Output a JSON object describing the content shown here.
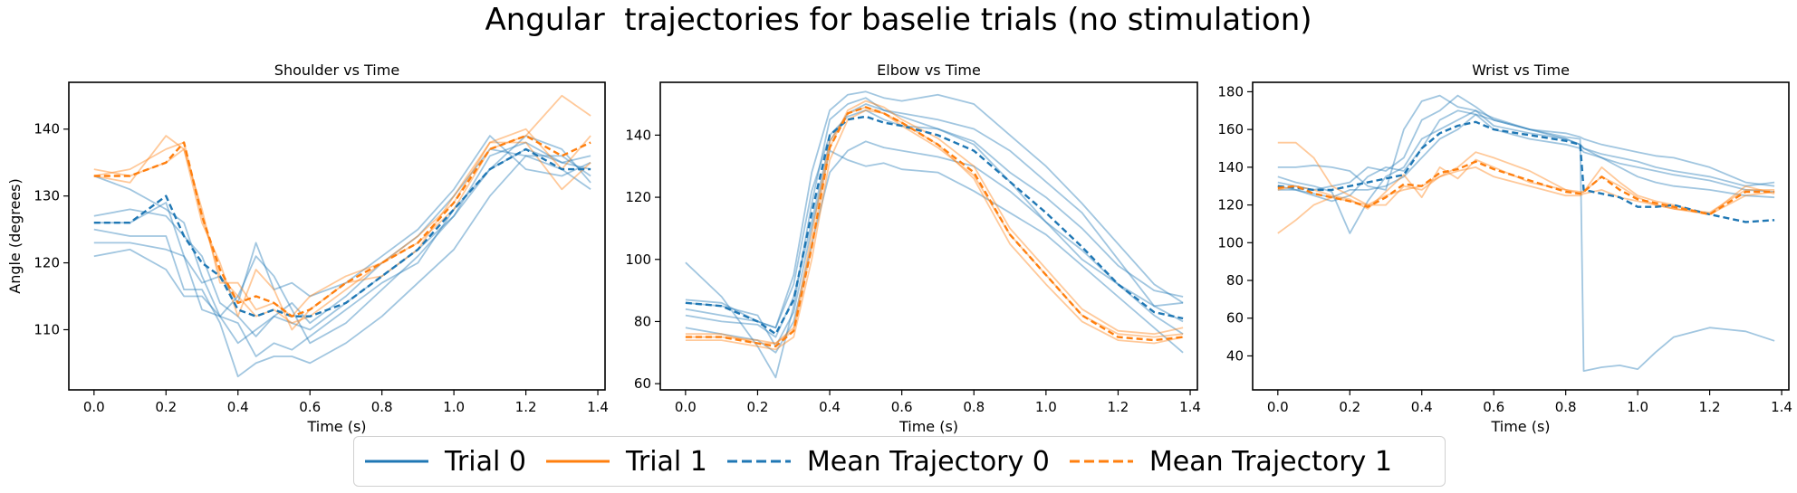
{
  "title": "Angular  trajectories for baselie trials (no stimulation)",
  "colors": {
    "trial0": "#1f77b4",
    "trial1": "#ff7f0e"
  },
  "legend": {
    "placement": "bottom-center",
    "items": [
      {
        "label": "Trial 0",
        "style": "solid",
        "color": "#1f77b4"
      },
      {
        "label": "Trial 1",
        "style": "solid",
        "color": "#ff7f0e"
      },
      {
        "label": "Mean Trajectory 0",
        "style": "dashed",
        "color": "#1f77b4"
      },
      {
        "label": "Mean Trajectory 1",
        "style": "dashed",
        "color": "#ff7f0e"
      }
    ]
  },
  "chart_data": [
    {
      "type": "line",
      "title": "Shoulder vs Time",
      "xlabel": "Time (s)",
      "ylabel": "Angle (degrees)",
      "xlim": [
        -0.07,
        1.42
      ],
      "ylim": [
        101,
        147
      ],
      "xticks": [
        0.0,
        0.2,
        0.4,
        0.6,
        0.8,
        1.0,
        1.2,
        1.4
      ],
      "yticks": [
        110,
        120,
        130,
        140
      ],
      "grid": false,
      "x": [
        0.0,
        0.1,
        0.2,
        0.25,
        0.3,
        0.35,
        0.4,
        0.45,
        0.5,
        0.55,
        0.6,
        0.7,
        0.8,
        0.9,
        1.0,
        1.1,
        1.2,
        1.3,
        1.38
      ],
      "series": [
        {
          "group": "trial0",
          "kind": "trial",
          "values": [
            133,
            131,
            128,
            126,
            118,
            112,
            108,
            110,
            112,
            111,
            110,
            114,
            118,
            122,
            127,
            136,
            138,
            135,
            134
          ]
        },
        {
          "group": "trial0",
          "kind": "trial",
          "values": [
            127,
            128,
            127,
            124,
            121,
            114,
            112,
            109,
            112,
            114,
            111,
            115,
            120,
            124,
            130,
            137,
            136,
            136,
            133
          ]
        },
        {
          "group": "trial0",
          "kind": "trial",
          "values": [
            123,
            123,
            122,
            121,
            117,
            118,
            114,
            123,
            116,
            117,
            115,
            117,
            121,
            125,
            131,
            139,
            134,
            133,
            135
          ]
        },
        {
          "group": "trial0",
          "kind": "trial",
          "values": [
            121,
            122,
            119,
            115,
            115,
            112,
            111,
            106,
            108,
            107,
            109,
            113,
            117,
            120,
            128,
            134,
            137,
            135,
            136
          ]
        },
        {
          "group": "trial0",
          "kind": "trial",
          "values": [
            125,
            124,
            124,
            116,
            116,
            111,
            103,
            105,
            106,
            106,
            105,
            108,
            112,
            117,
            122,
            130,
            136,
            134,
            131
          ]
        },
        {
          "group": "trial0",
          "kind": "trial",
          "values": [
            126,
            126,
            129,
            121,
            113,
            112,
            115,
            121,
            118,
            113,
            108,
            111,
            116,
            121,
            127,
            134,
            139,
            137,
            132
          ]
        },
        {
          "group": "trial1",
          "kind": "trial",
          "values": [
            133,
            134,
            137,
            138,
            127,
            118,
            115,
            112,
            113,
            111,
            112,
            116,
            120,
            123,
            128,
            137,
            139,
            145,
            142
          ]
        },
        {
          "group": "trial1",
          "kind": "trial",
          "values": [
            133,
            132,
            139,
            137,
            126,
            120,
            112,
            119,
            116,
            110,
            113,
            117,
            118,
            122,
            130,
            138,
            138,
            131,
            135
          ]
        },
        {
          "group": "trial1",
          "kind": "trial",
          "values": [
            134,
            133,
            135,
            137,
            128,
            117,
            117,
            113,
            114,
            112,
            115,
            118,
            120,
            124,
            129,
            138,
            140,
            134,
            139
          ]
        },
        {
          "group": "trial0",
          "kind": "mean",
          "values": [
            126,
            126,
            130,
            124,
            120,
            118,
            113,
            112,
            113,
            112,
            112,
            114,
            118,
            122,
            128,
            134,
            137,
            134,
            134
          ]
        },
        {
          "group": "trial1",
          "kind": "mean",
          "values": [
            133,
            133,
            135,
            138,
            127,
            119,
            114,
            115,
            114,
            112,
            113,
            117,
            120,
            123,
            129,
            137,
            139,
            136,
            138
          ]
        }
      ]
    },
    {
      "type": "line",
      "title": "Elbow vs Time",
      "xlabel": "Time (s)",
      "ylabel": "",
      "xlim": [
        -0.07,
        1.42
      ],
      "ylim": [
        58,
        157
      ],
      "xticks": [
        0.0,
        0.2,
        0.4,
        0.6,
        0.8,
        1.0,
        1.2,
        1.4
      ],
      "yticks": [
        60,
        80,
        100,
        120,
        140
      ],
      "grid": false,
      "x": [
        0.0,
        0.1,
        0.2,
        0.25,
        0.3,
        0.35,
        0.4,
        0.45,
        0.5,
        0.55,
        0.6,
        0.7,
        0.8,
        0.9,
        1.0,
        1.1,
        1.2,
        1.3,
        1.38
      ],
      "series": [
        {
          "group": "trial0",
          "kind": "trial",
          "values": [
            99,
            88,
            72,
            62,
            85,
            118,
            145,
            150,
            152,
            148,
            146,
            142,
            138,
            128,
            120,
            110,
            98,
            90,
            88
          ]
        },
        {
          "group": "trial0",
          "kind": "trial",
          "values": [
            87,
            86,
            80,
            78,
            95,
            128,
            148,
            153,
            154,
            152,
            151,
            153,
            150,
            140,
            130,
            118,
            105,
            92,
            86
          ]
        },
        {
          "group": "trial0",
          "kind": "trial",
          "values": [
            82,
            80,
            79,
            75,
            88,
            112,
            138,
            147,
            150,
            148,
            147,
            145,
            142,
            135,
            125,
            115,
            100,
            85,
            80
          ]
        },
        {
          "group": "trial0",
          "kind": "trial",
          "values": [
            78,
            76,
            74,
            70,
            80,
            105,
            128,
            135,
            138,
            136,
            135,
            133,
            130,
            122,
            112,
            103,
            92,
            82,
            76
          ]
        },
        {
          "group": "trial0",
          "kind": "trial",
          "values": [
            86,
            85,
            82,
            72,
            83,
            110,
            135,
            132,
            130,
            131,
            129,
            128,
            122,
            115,
            108,
            98,
            88,
            78,
            70
          ]
        },
        {
          "group": "trial0",
          "kind": "trial",
          "values": [
            84,
            82,
            80,
            78,
            92,
            122,
            140,
            146,
            148,
            145,
            143,
            142,
            137,
            125,
            112,
            100,
            92,
            85,
            86
          ]
        },
        {
          "group": "trial1",
          "kind": "trial",
          "values": [
            76,
            76,
            73,
            73,
            78,
            108,
            138,
            147,
            149,
            147,
            143,
            136,
            127,
            108,
            95,
            82,
            76,
            75,
            76
          ]
        },
        {
          "group": "trial1",
          "kind": "trial",
          "values": [
            74,
            74,
            72,
            71,
            75,
            100,
            132,
            145,
            148,
            147,
            144,
            137,
            126,
            105,
            92,
            80,
            74,
            73,
            75
          ]
        },
        {
          "group": "trial1",
          "kind": "trial",
          "values": [
            75,
            75,
            74,
            73,
            77,
            104,
            136,
            148,
            151,
            149,
            145,
            139,
            130,
            110,
            97,
            84,
            77,
            76,
            78
          ]
        },
        {
          "group": "trial0",
          "kind": "mean",
          "values": [
            86,
            85,
            80,
            76,
            87,
            115,
            140,
            145,
            146,
            144,
            143,
            140,
            135,
            125,
            115,
            104,
            92,
            83,
            81
          ]
        },
        {
          "group": "trial1",
          "kind": "mean",
          "values": [
            75,
            75,
            73,
            72,
            77,
            104,
            136,
            147,
            149,
            147,
            144,
            137,
            128,
            108,
            95,
            82,
            75,
            74,
            75
          ]
        }
      ]
    },
    {
      "type": "line",
      "title": "Wrist vs Time",
      "xlabel": "Time (s)",
      "ylabel": "",
      "xlim": [
        -0.07,
        1.42
      ],
      "ylim": [
        22,
        185
      ],
      "xticks": [
        0.0,
        0.2,
        0.4,
        0.6,
        0.8,
        1.0,
        1.2,
        1.4
      ],
      "yticks": [
        40,
        60,
        80,
        100,
        120,
        140,
        160,
        180
      ],
      "grid": false,
      "x": [
        0.0,
        0.05,
        0.1,
        0.15,
        0.2,
        0.25,
        0.3,
        0.35,
        0.4,
        0.45,
        0.5,
        0.55,
        0.6,
        0.7,
        0.8,
        0.84,
        0.85,
        0.9,
        0.95,
        1.0,
        1.05,
        1.1,
        1.2,
        1.3,
        1.38
      ],
      "series": [
        {
          "group": "trial0",
          "kind": "trial",
          "values": [
            140,
            140,
            141,
            140,
            138,
            130,
            128,
            160,
            175,
            178,
            172,
            170,
            166,
            160,
            156,
            155,
            32,
            34,
            35,
            33,
            42,
            50,
            55,
            53,
            48
          ]
        },
        {
          "group": "trial0",
          "kind": "trial",
          "values": [
            135,
            132,
            130,
            127,
            105,
            122,
            135,
            140,
            155,
            160,
            165,
            170,
            162,
            158,
            155,
            152,
            150,
            147,
            145,
            143,
            140,
            138,
            135,
            130,
            132
          ]
        },
        {
          "group": "trial0",
          "kind": "trial",
          "values": [
            130,
            128,
            126,
            124,
            128,
            128,
            130,
            135,
            145,
            155,
            160,
            168,
            165,
            160,
            155,
            152,
            150,
            145,
            140,
            135,
            132,
            130,
            128,
            125,
            124
          ]
        },
        {
          "group": "trial0",
          "kind": "trial",
          "values": [
            128,
            128,
            125,
            122,
            125,
            135,
            140,
            138,
            150,
            165,
            170,
            168,
            160,
            155,
            152,
            150,
            148,
            145,
            142,
            140,
            138,
            136,
            133,
            128,
            127
          ]
        },
        {
          "group": "trial0",
          "kind": "trial",
          "values": [
            132,
            130,
            128,
            130,
            132,
            140,
            138,
            145,
            165,
            170,
            178,
            172,
            165,
            160,
            158,
            156,
            155,
            152,
            150,
            148,
            146,
            145,
            140,
            132,
            130
          ]
        },
        {
          "group": "trial1",
          "kind": "trial",
          "values": [
            105,
            112,
            120,
            124,
            122,
            120,
            125,
            128,
            130,
            135,
            140,
            148,
            145,
            138,
            128,
            126,
            127,
            135,
            130,
            124,
            120,
            118,
            115,
            125,
            127
          ]
        },
        {
          "group": "trial1",
          "kind": "trial",
          "values": [
            153,
            153,
            145,
            130,
            125,
            120,
            120,
            130,
            128,
            135,
            138,
            140,
            135,
            130,
            125,
            125,
            126,
            128,
            124,
            122,
            120,
            118,
            116,
            128,
            128
          ]
        },
        {
          "group": "trial1",
          "kind": "trial",
          "values": [
            128,
            130,
            128,
            125,
            123,
            118,
            127,
            136,
            124,
            140,
            134,
            144,
            140,
            132,
            128,
            127,
            127,
            140,
            132,
            125,
            122,
            120,
            115,
            130,
            126
          ]
        },
        {
          "group": "trial0",
          "kind": "mean",
          "values": [
            130,
            129,
            128,
            128,
            130,
            132,
            134,
            136,
            150,
            158,
            162,
            164,
            160,
            157,
            154,
            152,
            128,
            126,
            124,
            119,
            119,
            120,
            115,
            111,
            112
          ]
        },
        {
          "group": "trial1",
          "kind": "mean",
          "values": [
            129,
            130,
            126,
            124,
            122,
            119,
            124,
            131,
            130,
            137,
            139,
            143,
            139,
            133,
            127,
            126,
            127,
            135,
            128,
            123,
            121,
            119,
            115,
            127,
            127
          ]
        }
      ]
    }
  ]
}
